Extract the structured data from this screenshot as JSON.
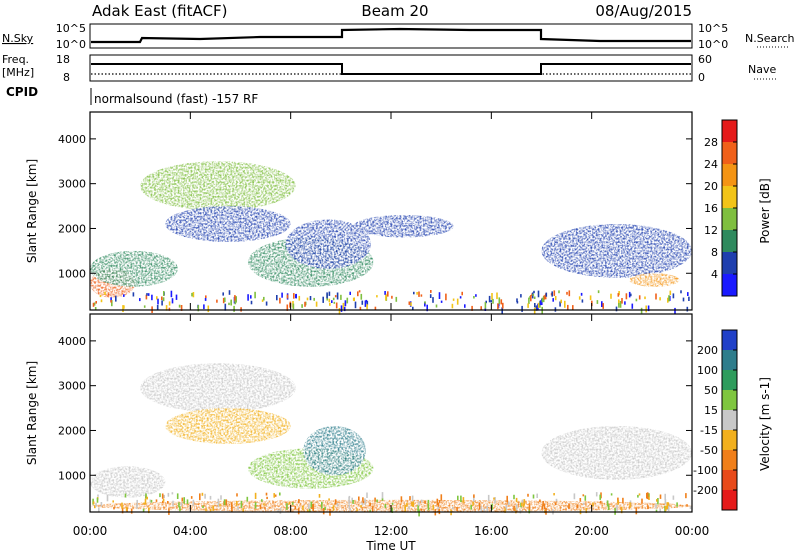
{
  "header": {
    "title": "Adak East (fitACF)",
    "beam": "Beam 20",
    "date": "08/Aug/2015"
  },
  "panels": {
    "nsky": {
      "label": "N.Sky",
      "ticks": [
        "10^5",
        "10^0"
      ]
    },
    "nsearch": {
      "label": "N.Search",
      "ticks": [
        "10^5",
        "10^0"
      ]
    },
    "freq": {
      "label_line1": "Freq.",
      "label_line2": "[MHz]",
      "ticks": [
        "18",
        "8"
      ]
    },
    "nave": {
      "label": "Nave",
      "ticks": [
        "60",
        "0"
      ]
    },
    "cpid": {
      "label": "CPID",
      "text": "normalsound (fast) -157 RF"
    }
  },
  "colorbars": {
    "power": {
      "label": "Power [dB]",
      "ticks": [
        "4",
        "8",
        "12",
        "16",
        "20",
        "24",
        "28"
      ],
      "colors": [
        "#1a1aff",
        "#1f3fae",
        "#2f8a5e",
        "#7fbf3f",
        "#f2c418",
        "#f49414",
        "#f0601a",
        "#e51a1a"
      ]
    },
    "velocity": {
      "label": "Velocity [m s-1]",
      "ticks": [
        "200",
        "100",
        "50",
        "15",
        "-15",
        "-50",
        "-100",
        "-200"
      ],
      "colors": [
        "#2040c8",
        "#2e7d8c",
        "#2e9c5c",
        "#7fc63f",
        "#c8c8c8",
        "#f2b01e",
        "#f07f1a",
        "#e84a1a",
        "#e51a1a"
      ]
    }
  },
  "chart_data": [
    {
      "type": "heatmap",
      "panel": "power",
      "xlabel": "Time UT",
      "ylabel": "Slant Range [km]",
      "x_ticks": [
        "00:00",
        "04:00",
        "08:00",
        "12:00",
        "16:00",
        "20:00",
        "00:00"
      ],
      "y_ticks": [
        "1000",
        "2000",
        "3000",
        "4000"
      ],
      "xlim_hours": [
        0,
        24
      ],
      "ylim_km": [
        180,
        4600
      ],
      "echo_regions": [
        {
          "t": [
            0.0,
            1.8
          ],
          "r": [
            450,
            1100
          ],
          "power_db": 26
        },
        {
          "t": [
            0.0,
            3.5
          ],
          "r": [
            700,
            1500
          ],
          "power_db": 8
        },
        {
          "t": [
            2.0,
            8.2
          ],
          "r": [
            2400,
            3500
          ],
          "power_db": 14
        },
        {
          "t": [
            3.0,
            8.0
          ],
          "r": [
            1700,
            2500
          ],
          "power_db": 6
        },
        {
          "t": [
            6.3,
            11.3
          ],
          "r": [
            700,
            1800
          ],
          "power_db": 10
        },
        {
          "t": [
            7.8,
            11.2
          ],
          "r": [
            1100,
            2200
          ],
          "power_db": 6
        },
        {
          "t": [
            10.5,
            14.5
          ],
          "r": [
            1800,
            2300
          ],
          "power_db": 5
        },
        {
          "t": [
            18.0,
            24.0
          ],
          "r": [
            900,
            2100
          ],
          "power_db": 7
        },
        {
          "t": [
            21.5,
            23.5
          ],
          "r": [
            700,
            1000
          ],
          "power_db": 22
        }
      ]
    },
    {
      "type": "heatmap",
      "panel": "velocity",
      "xlabel": "Time UT",
      "ylabel": "Slant Range [km]",
      "x_ticks": [
        "00:00",
        "04:00",
        "08:00",
        "12:00",
        "16:00",
        "20:00",
        "00:00"
      ],
      "y_ticks": [
        "1000",
        "2000",
        "3000",
        "4000"
      ],
      "xlim_hours": [
        0,
        24
      ],
      "ylim_km": [
        180,
        4600
      ],
      "echo_regions": [
        {
          "t": [
            0.0,
            3.0
          ],
          "r": [
            500,
            1200
          ],
          "velocity_ms": 0
        },
        {
          "t": [
            2.0,
            8.2
          ],
          "r": [
            2400,
            3500
          ],
          "velocity_ms": 0
        },
        {
          "t": [
            3.0,
            8.0
          ],
          "r": [
            1700,
            2500
          ],
          "velocity_ms": -30
        },
        {
          "t": [
            6.3,
            11.3
          ],
          "r": [
            700,
            1600
          ],
          "velocity_ms": 40
        },
        {
          "t": [
            8.5,
            11.0
          ],
          "r": [
            1000,
            2100
          ],
          "velocity_ms": 180
        },
        {
          "t": [
            18.0,
            24.0
          ],
          "r": [
            900,
            2100
          ],
          "velocity_ms": 0
        },
        {
          "t": [
            0.0,
            24.0
          ],
          "r": [
            180,
            450
          ],
          "velocity_ms": -60
        }
      ]
    }
  ]
}
